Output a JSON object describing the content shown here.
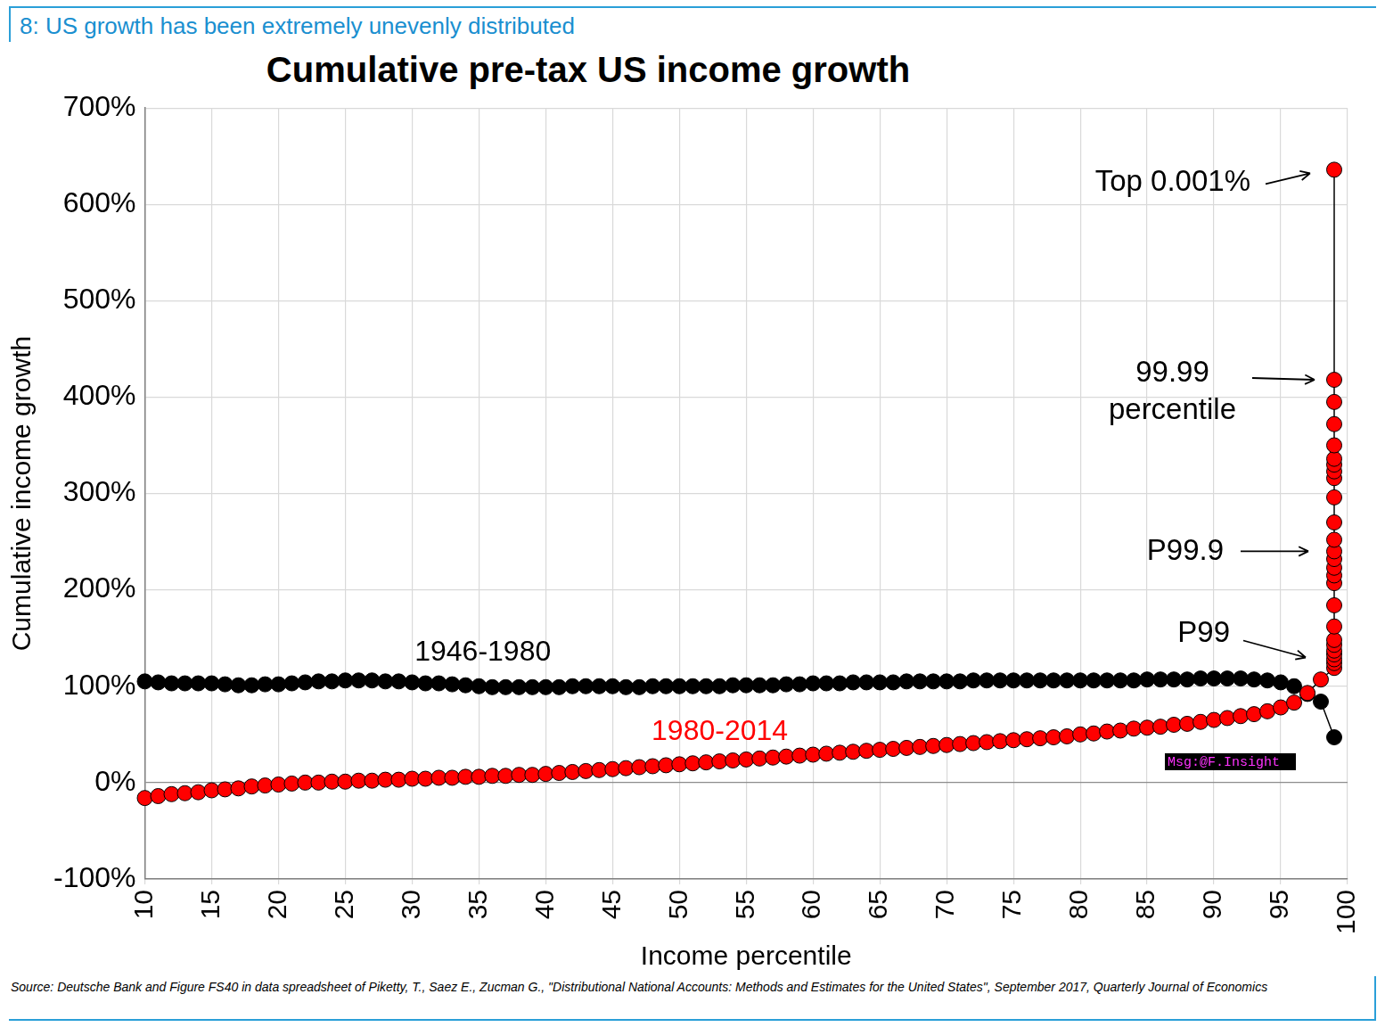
{
  "header": "8: US growth has been extremely unevenly distributed",
  "source": "Source: Deutsche Bank and Figure FS40 in data spreadsheet of Piketty, T., Saez E., Zucman G., \"Distributional National Accounts: Methods and Estimates for the United States\", September 2017, Quarterly Journal of Economics",
  "chart_data": {
    "type": "line",
    "title": "Cumulative pre-tax US income growth",
    "x_label": "Income percentile",
    "y_label": "Cumulative income growth",
    "xlim": [
      10,
      100
    ],
    "xticks": [
      10,
      15,
      20,
      25,
      30,
      35,
      40,
      45,
      50,
      55,
      60,
      65,
      70,
      75,
      80,
      85,
      90,
      95,
      100
    ],
    "ylim": [
      -100,
      700
    ],
    "yticks": [
      {
        "value": -100,
        "label": "-100%"
      },
      {
        "value": 0,
        "label": "0%"
      },
      {
        "value": 100,
        "label": "100%"
      },
      {
        "value": 200,
        "label": "200%"
      },
      {
        "value": 300,
        "label": "300%"
      },
      {
        "value": 400,
        "label": "400%"
      },
      {
        "value": 500,
        "label": "500%"
      },
      {
        "value": 600,
        "label": "600%"
      },
      {
        "value": 700,
        "label": "700%"
      }
    ],
    "grid": true,
    "marker": "circle",
    "series": [
      {
        "name": "1946-1980",
        "color": "#000000",
        "x": [
          10,
          11,
          12,
          13,
          14,
          15,
          16,
          17,
          18,
          19,
          20,
          21,
          22,
          23,
          24,
          25,
          26,
          27,
          28,
          29,
          30,
          31,
          32,
          33,
          34,
          35,
          36,
          37,
          38,
          39,
          40,
          41,
          42,
          43,
          44,
          45,
          46,
          47,
          48,
          49,
          50,
          51,
          52,
          53,
          54,
          55,
          56,
          57,
          58,
          59,
          60,
          61,
          62,
          63,
          64,
          65,
          66,
          67,
          68,
          69,
          70,
          71,
          72,
          73,
          74,
          75,
          76,
          77,
          78,
          79,
          80,
          81,
          82,
          83,
          84,
          85,
          86,
          87,
          88,
          89,
          90,
          91,
          92,
          93,
          94,
          95,
          96,
          97,
          98,
          99
        ],
        "values": [
          105,
          104,
          103,
          103,
          103,
          103,
          102,
          101,
          101,
          102,
          102,
          103,
          104,
          105,
          105,
          106,
          106,
          106,
          105,
          105,
          104,
          103,
          103,
          102,
          101,
          100,
          99,
          99,
          99,
          99,
          99,
          99,
          100,
          100,
          100,
          100,
          99,
          99,
          100,
          100,
          100,
          100,
          100,
          100,
          101,
          101,
          101,
          101,
          102,
          102,
          103,
          103,
          103,
          104,
          104,
          104,
          104,
          105,
          105,
          105,
          105,
          105,
          106,
          106,
          106,
          106,
          106,
          106,
          106,
          106,
          106,
          106,
          106,
          106,
          106,
          107,
          107,
          107,
          107,
          108,
          108,
          108,
          108,
          107,
          106,
          104,
          100,
          92,
          84,
          47
        ]
      },
      {
        "name": "1980-2014",
        "color": "#ff0000",
        "x": [
          10,
          11,
          12,
          13,
          14,
          15,
          16,
          17,
          18,
          19,
          20,
          21,
          22,
          23,
          24,
          25,
          26,
          27,
          28,
          29,
          30,
          31,
          32,
          33,
          34,
          35,
          36,
          37,
          38,
          39,
          40,
          41,
          42,
          43,
          44,
          45,
          46,
          47,
          48,
          49,
          50,
          51,
          52,
          53,
          54,
          55,
          56,
          57,
          58,
          59,
          60,
          61,
          62,
          63,
          64,
          65,
          66,
          67,
          68,
          69,
          70,
          71,
          72,
          73,
          74,
          75,
          76,
          77,
          78,
          79,
          80,
          81,
          82,
          83,
          84,
          85,
          86,
          87,
          88,
          89,
          90,
          91,
          92,
          93,
          94,
          95,
          96,
          97,
          98,
          99,
          99,
          99,
          99,
          99,
          99,
          99,
          99,
          99,
          99,
          99,
          99,
          99,
          99,
          99,
          99,
          99,
          99,
          99,
          99,
          99,
          99,
          99,
          99,
          99,
          99
        ],
        "values": [
          -16,
          -14,
          -12,
          -11,
          -10,
          -8,
          -7,
          -6,
          -4,
          -3,
          -2,
          -1,
          0,
          0,
          1,
          1,
          2,
          2,
          3,
          3,
          4,
          4,
          5,
          5,
          6,
          6,
          7,
          7,
          8,
          8,
          9,
          10,
          11,
          12,
          13,
          14,
          15,
          16,
          17,
          18,
          19,
          20,
          21,
          22,
          23,
          24,
          25,
          26,
          27,
          28,
          29,
          30,
          31,
          32,
          33,
          34,
          35,
          36,
          37,
          38,
          39,
          40,
          41,
          42,
          43,
          44,
          45,
          46,
          47,
          48,
          50,
          51,
          53,
          54,
          56,
          57,
          58,
          60,
          61,
          63,
          65,
          67,
          69,
          71,
          74,
          78,
          83,
          93,
          107,
          119,
          124,
          128,
          133,
          137,
          143,
          148,
          162,
          184,
          207,
          215,
          223,
          232,
          240,
          252,
          270,
          296,
          316,
          323,
          330,
          336,
          350,
          372,
          395,
          418,
          636
        ]
      }
    ],
    "annotations": [
      {
        "text": "Top 0.001%",
        "x": 99,
        "y": 636
      },
      {
        "text": "99.99\npercentile",
        "x": 99,
        "y": 418
      },
      {
        "text": "P99.9",
        "x": 99,
        "y": 240
      },
      {
        "text": "P99",
        "x": 99,
        "y": 128
      }
    ],
    "watermark": "Msg:@F.Insight"
  }
}
